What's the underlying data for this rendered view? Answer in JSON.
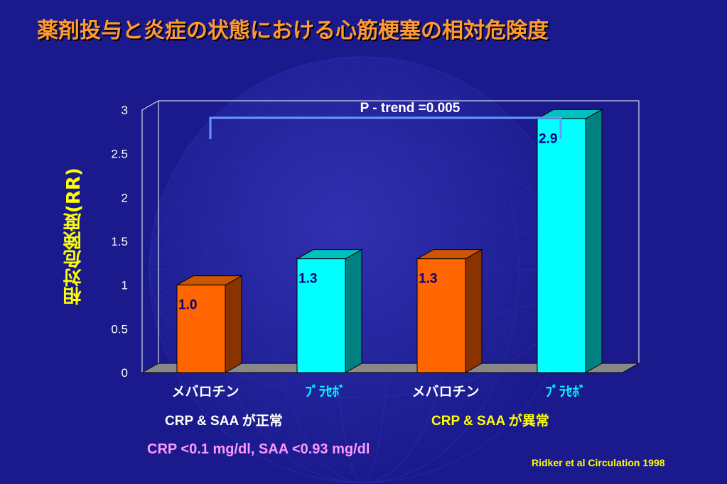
{
  "title": "薬剤投与と炎症の状態における心筋梗塞の相対危険度",
  "ylabel": "相対危険度(RR)",
  "trend_label": "P - trend =0.005",
  "groups": [
    {
      "label": "CRP & SAA が正常",
      "color": "#ffffff"
    },
    {
      "label": "CRP & SAA が異常",
      "color": "#ffff00"
    }
  ],
  "condition": "CRP <0.1 mg/dl, SAA <0.93 mg/dl",
  "source": "Ridker et al Circulation 1998",
  "colors": {
    "background": "#1a1a8c",
    "orange": "#ff6600",
    "cyan": "#00ffff",
    "title": "#ff9933",
    "axis_text": "#ffffff",
    "cyan_label": "#00ffff"
  },
  "chart_data": {
    "type": "bar",
    "categories": [
      "メバロチン",
      "ﾌﾟﾗｾﾎﾞ",
      "メバロチン",
      "ﾌﾟﾗｾﾎﾞ"
    ],
    "values": [
      1.0,
      1.3,
      1.3,
      2.9
    ],
    "data_labels": [
      "1.0",
      "1.3",
      "1.3",
      "2.9"
    ],
    "bar_colors": [
      "orange",
      "cyan",
      "orange",
      "cyan"
    ],
    "category_label_colors": [
      "#ffffff",
      "#00ffff",
      "#ffffff",
      "#00ffff"
    ],
    "yticks": [
      "0",
      "0.5",
      "1",
      "1.5",
      "2",
      "2.5",
      "3"
    ],
    "ylim": [
      0,
      3
    ],
    "grid": false,
    "legend": false
  }
}
